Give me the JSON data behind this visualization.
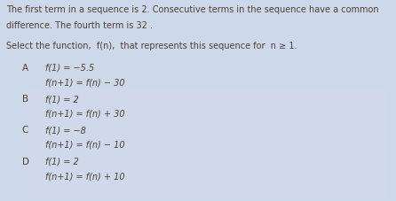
{
  "bg_color": "#cdd8e8",
  "panel_color": "#d6e0ee",
  "text_color": "#444444",
  "prompt_line1": "The first term in a sequence is 2. Consecutive terms in the sequence have a common",
  "prompt_line2": "difference. The fourth term is 32 .",
  "instruction": "Select the function,  f(n),  that represents this sequence for  n ≥ 1.",
  "options": [
    {
      "label": "A",
      "line1": "f(1) = −5.5",
      "line2": "f(n+1) = f(n) − 30"
    },
    {
      "label": "B",
      "line1": "f(1) = 2",
      "line2": "f(n+1) = f(n) + 30"
    },
    {
      "label": "C",
      "line1": "f(1) = −8",
      "line2": "f(n+1) = f(n) − 10"
    },
    {
      "label": "D",
      "line1": "f(1) = 2",
      "line2": "f(n+1) = f(n) + 10"
    }
  ],
  "prompt_fontsize": 7.0,
  "instruction_fontsize": 7.0,
  "label_fontsize": 7.5,
  "option_fontsize": 7.0,
  "figwidth": 4.46,
  "figheight": 2.28,
  "dpi": 100
}
